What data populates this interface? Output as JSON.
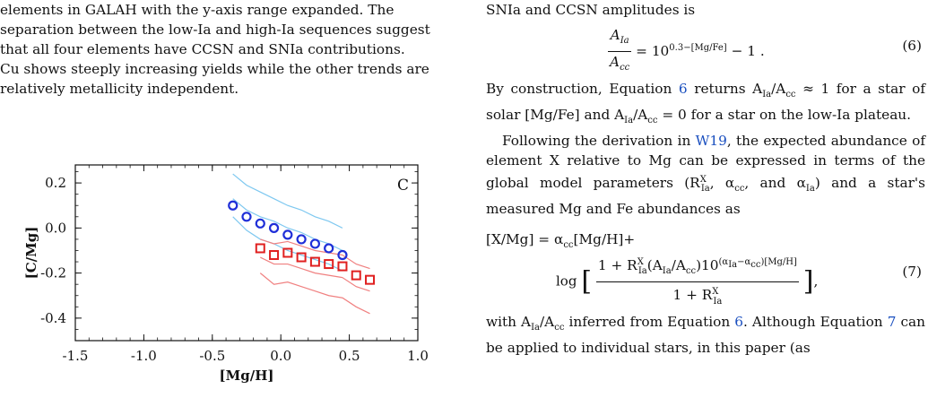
{
  "left_column": {
    "caption_lines": [
      "elements in GALAH with the y-axis range expanded.  The",
      "separation between the low-Ia and high-Ia sequences suggest",
      "that all four elements have CCSN and SNIa contributions.",
      "Cu shows steeply increasing yields while the other trends are",
      "relatively metallicity independent."
    ]
  },
  "chart_data": {
    "type": "scatter",
    "panel_label": "C",
    "xlabel": "[Mg/H]",
    "ylabel": "[C/Mg]",
    "xlim": [
      -1.5,
      1.0
    ],
    "ylim": [
      -0.5,
      0.28
    ],
    "x_ticks": [
      "-1.5",
      "-1.0",
      "-0.5",
      "0.0",
      "0.5",
      "1.0"
    ],
    "y_ticks": [
      "0.2",
      "0.0",
      "-0.2",
      "-0.4"
    ],
    "colors": {
      "high_ia": "#1f2fd8",
      "low_ia": "#e02020",
      "high_ia_band": "#7ec8f0",
      "low_ia_band": "#f08080"
    },
    "series": [
      {
        "marker": "circle",
        "x": [
          -0.35,
          -0.25,
          -0.15,
          -0.05,
          0.05,
          0.15,
          0.25,
          0.35,
          0.45
        ],
        "y": [
          0.1,
          0.05,
          0.02,
          0.0,
          -0.03,
          -0.05,
          -0.07,
          -0.09,
          -0.12
        ]
      },
      {
        "marker": "square",
        "x": [
          -0.15,
          -0.05,
          0.05,
          0.15,
          0.25,
          0.35,
          0.45,
          0.55,
          0.65
        ],
        "y": [
          -0.09,
          -0.12,
          -0.11,
          -0.13,
          -0.15,
          -0.16,
          -0.17,
          -0.21,
          -0.23
        ]
      }
    ],
    "bands": [
      {
        "color": "high_ia_band",
        "x": [
          -0.35,
          -0.25,
          -0.15,
          -0.05,
          0.05,
          0.15,
          0.25,
          0.35,
          0.45
        ],
        "y": [
          0.24,
          0.19,
          0.16,
          0.13,
          0.1,
          0.08,
          0.05,
          0.03,
          0.0
        ]
      },
      {
        "color": "high_ia_band",
        "x": [
          -0.35,
          -0.25,
          -0.15,
          -0.05,
          0.05,
          0.15,
          0.25,
          0.35,
          0.45
        ],
        "y": [
          0.13,
          0.08,
          0.05,
          0.03,
          0.0,
          -0.02,
          -0.05,
          -0.07,
          -0.1
        ]
      },
      {
        "color": "high_ia_band",
        "x": [
          -0.35,
          -0.25,
          -0.15,
          -0.05,
          0.05,
          0.15,
          0.25,
          0.35,
          0.45
        ],
        "y": [
          0.05,
          -0.01,
          -0.05,
          -0.07,
          -0.1,
          -0.12,
          -0.14,
          -0.16,
          -0.19
        ]
      },
      {
        "color": "low_ia_band",
        "x": [
          -0.15,
          -0.05,
          0.05,
          0.15,
          0.25,
          0.35,
          0.45,
          0.55,
          0.65
        ],
        "y": [
          -0.05,
          -0.07,
          -0.06,
          -0.08,
          -0.1,
          -0.11,
          -0.12,
          -0.16,
          -0.18
        ]
      },
      {
        "color": "low_ia_band",
        "x": [
          -0.15,
          -0.05,
          0.05,
          0.15,
          0.25,
          0.35,
          0.45,
          0.55,
          0.65
        ],
        "y": [
          -0.13,
          -0.16,
          -0.16,
          -0.18,
          -0.2,
          -0.21,
          -0.22,
          -0.26,
          -0.28
        ]
      },
      {
        "color": "low_ia_band",
        "x": [
          -0.15,
          -0.05,
          0.05,
          0.15,
          0.25,
          0.35,
          0.45,
          0.55,
          0.65
        ],
        "y": [
          -0.2,
          -0.25,
          -0.24,
          -0.26,
          -0.28,
          -0.3,
          -0.31,
          -0.35,
          -0.38
        ]
      }
    ]
  },
  "right_column": {
    "intro_line": "SNIa and CCSN amplitudes is",
    "eq6_number": "(6)",
    "para2_parts": [
      "By construction, Equation ",
      "6",
      " returns A",
      "Ia",
      "/A",
      "cc",
      " ≈ 1 for a star of solar [Mg/Fe] and A",
      "Ia",
      "/A",
      "cc",
      " = 0 for a star on the low-Ia plateau."
    ],
    "para3_parts": [
      "Following the derivation in ",
      "W19",
      ", the expected abundance of element X relative to Mg can be expressed in terms of the global model parameters (R",
      "X",
      "Ia",
      ", α",
      "cc",
      ", and α",
      "Ia",
      ") and a star's measured Mg and Fe abundances as"
    ],
    "eq7_line1": "[X/Mg] = α",
    "eq7_number": "(7)",
    "para4_parts": [
      "with A",
      "Ia",
      "/A",
      "cc",
      " inferred from Equation ",
      "6",
      ". Although Equation ",
      "7",
      " can be applied to individual stars, in this paper (as"
    ]
  }
}
